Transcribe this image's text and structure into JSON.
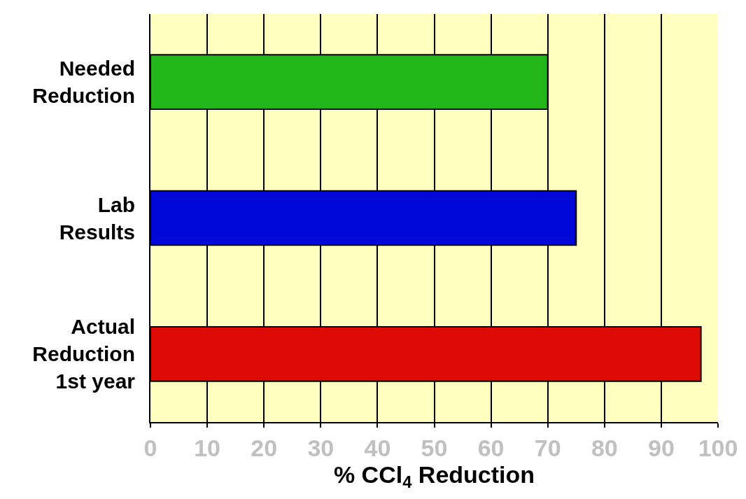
{
  "chart_data": {
    "type": "bar",
    "orientation": "horizontal",
    "categories": [
      "Needed\nReduction",
      "Lab\nResults",
      "Actual\nReduction\n1st year"
    ],
    "values": [
      70,
      75,
      97
    ],
    "colors": [
      "#22b61a",
      "#0008d8",
      "#dd0a05"
    ],
    "xlim": [
      0,
      100
    ],
    "xticks": [
      0,
      10,
      20,
      30,
      40,
      50,
      60,
      70,
      80,
      90,
      100
    ],
    "xlabel": "% CCl$_{4}$ Reduction",
    "grid": "x"
  }
}
